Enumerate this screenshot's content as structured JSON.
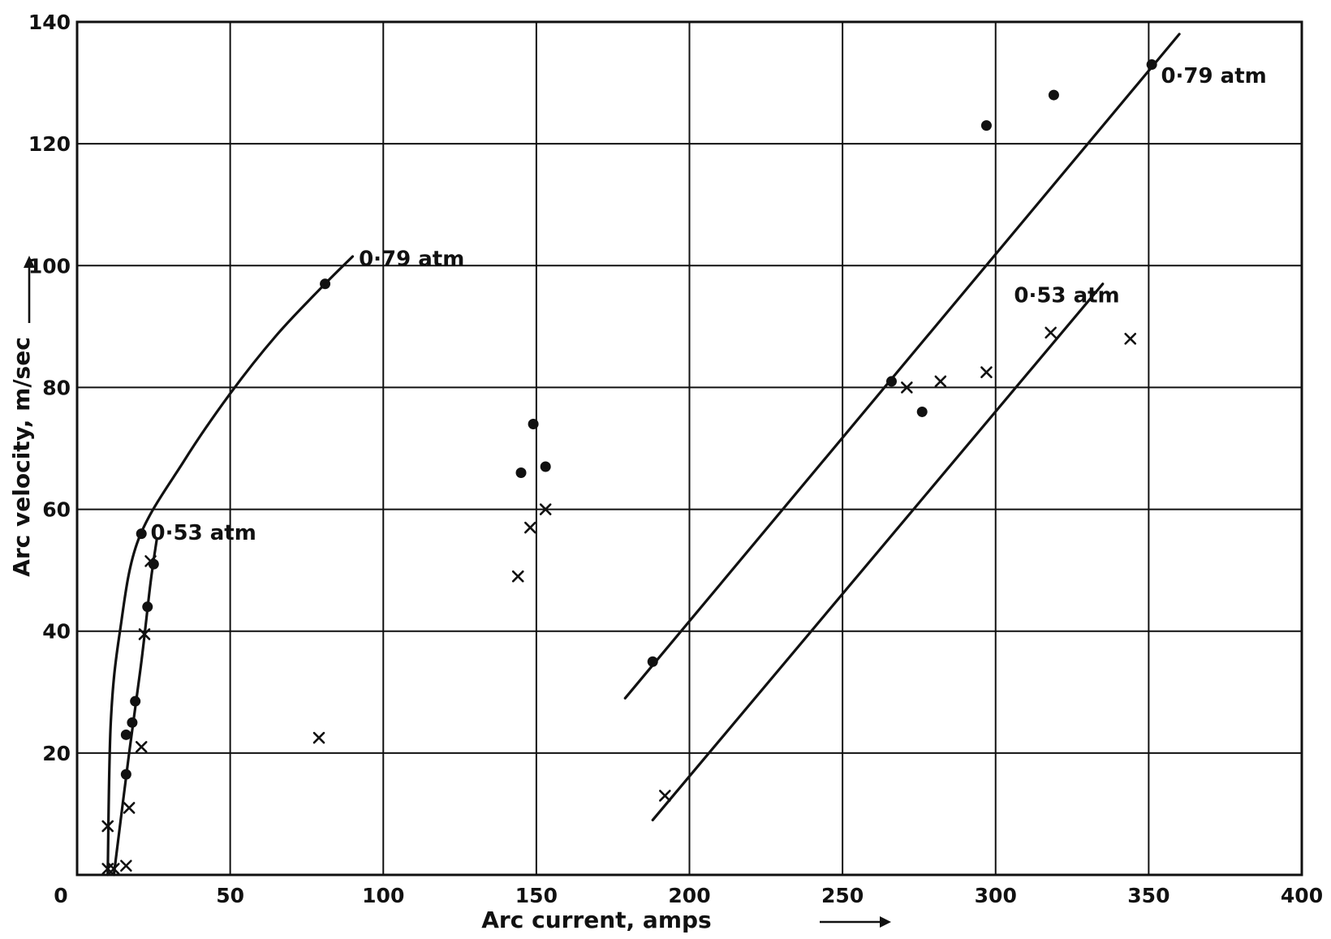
{
  "chart_data": {
    "type": "scatter",
    "xlabel": "Arc current, amps",
    "ylabel": "Arc velocity, m/sec",
    "xlim": [
      0,
      400
    ],
    "ylim": [
      0,
      140
    ],
    "x_ticks": [
      "0",
      "50",
      "100",
      "150",
      "200",
      "250",
      "300",
      "350",
      "400"
    ],
    "y_ticks": [
      "20",
      "40",
      "60",
      "80",
      "100",
      "120",
      "140"
    ],
    "grid": true,
    "series": [
      {
        "name": "0·79 atm",
        "marker": "dot",
        "points": [
          [
            81,
            97
          ],
          [
            21,
            56
          ],
          [
            25,
            51
          ],
          [
            23,
            44
          ],
          [
            19,
            28.5
          ],
          [
            18,
            25
          ],
          [
            16,
            23
          ],
          [
            16,
            16.5
          ],
          [
            149,
            74
          ],
          [
            145,
            66
          ],
          [
            153,
            67
          ],
          [
            188,
            35
          ],
          [
            266,
            81
          ],
          [
            276,
            76
          ],
          [
            297,
            123
          ],
          [
            319,
            128
          ],
          [
            351,
            133
          ]
        ]
      },
      {
        "name": "0·53 atm",
        "marker": "cross",
        "points": [
          [
            10,
            8
          ],
          [
            10,
            1
          ],
          [
            12,
            1
          ],
          [
            16,
            1.5
          ],
          [
            17,
            11
          ],
          [
            21,
            21
          ],
          [
            22,
            39.5
          ],
          [
            24,
            51.5
          ],
          [
            79,
            22.5
          ],
          [
            144,
            49
          ],
          [
            148,
            57
          ],
          [
            153,
            60
          ],
          [
            192,
            13
          ],
          [
            271,
            80
          ],
          [
            282,
            81
          ],
          [
            297,
            82.5
          ],
          [
            318,
            89
          ],
          [
            344,
            88
          ]
        ]
      }
    ],
    "fit_lines": [
      {
        "label": "0·79 atm",
        "points": [
          [
            10,
            0
          ],
          [
            11,
            25
          ],
          [
            14,
            40
          ],
          [
            20,
            55
          ],
          [
            35,
            68
          ],
          [
            50,
            79
          ],
          [
            65,
            88.5
          ],
          [
            80,
            96.5
          ],
          [
            90,
            101.5
          ]
        ]
      },
      {
        "label": "0·53 atm",
        "points": [
          [
            12,
            0
          ],
          [
            17,
            20
          ],
          [
            21,
            35
          ],
          [
            24,
            48
          ],
          [
            26,
            55
          ]
        ]
      },
      {
        "label": "0·79 atm",
        "points": [
          [
            179,
            29
          ],
          [
            360,
            138
          ]
        ]
      },
      {
        "label": "0·53 atm",
        "points": [
          [
            188,
            9
          ],
          [
            335,
            97
          ]
        ]
      }
    ],
    "annotations": [
      {
        "text": "0·79 atm",
        "x": 92,
        "y": 100
      },
      {
        "text": "0·53 atm",
        "x": 24,
        "y": 55
      },
      {
        "text": "0·53 atm",
        "x": 306,
        "y": 94
      },
      {
        "text": "0·79 atm",
        "x": 354,
        "y": 130
      }
    ]
  }
}
